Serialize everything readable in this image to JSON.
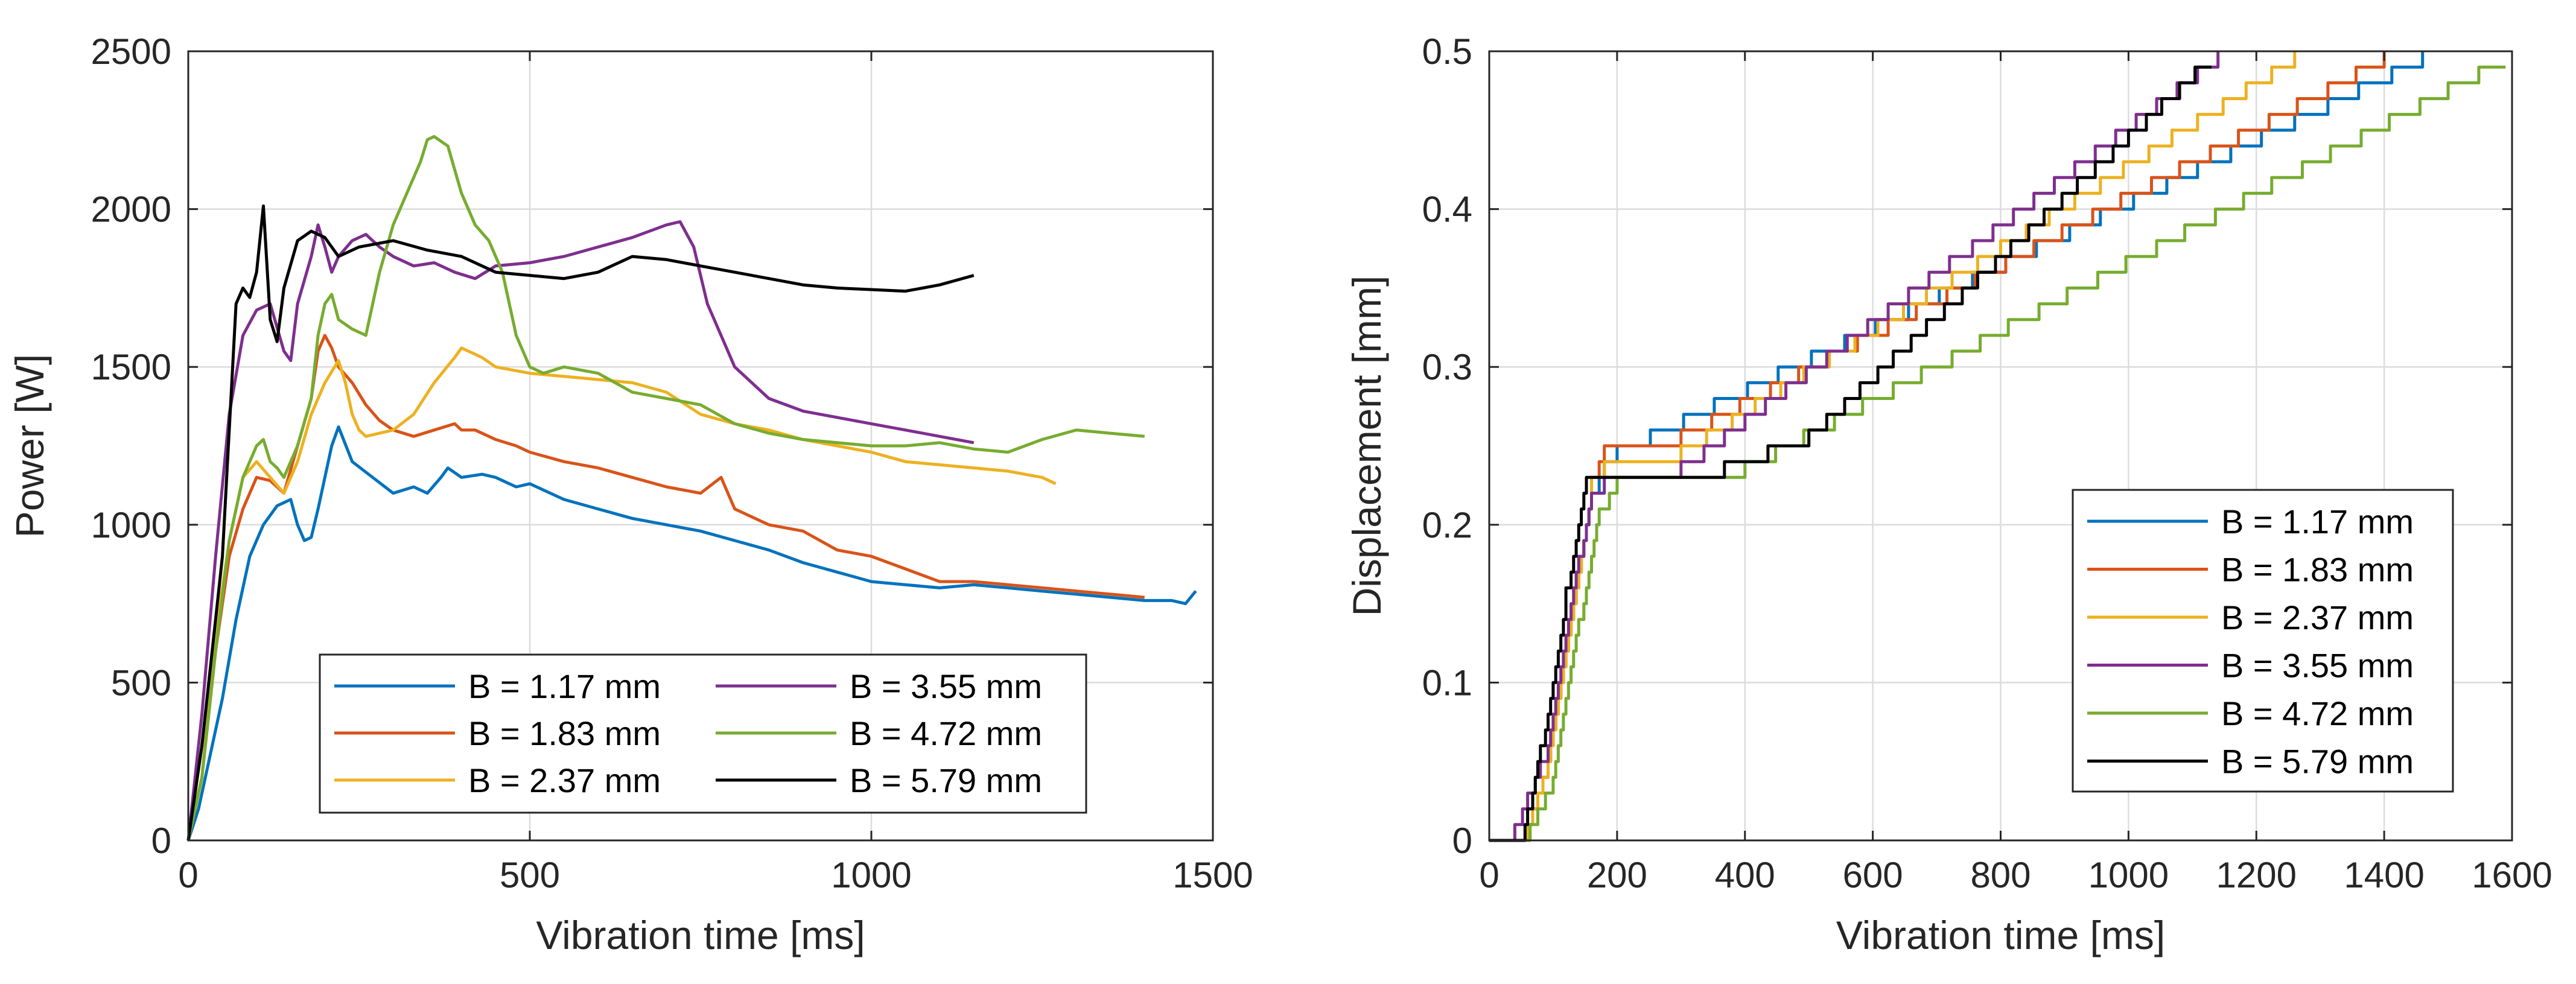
{
  "chart_data": [
    {
      "type": "line",
      "xlabel": "Vibration time [ms]",
      "ylabel": "Power [W]",
      "xlim": [
        0,
        1500
      ],
      "ylim": [
        0,
        2500
      ],
      "xticks": [
        0,
        500,
        1000,
        1500
      ],
      "yticks": [
        0,
        500,
        1000,
        1500,
        2000,
        2500
      ],
      "grid": true,
      "legend_position": "bottom-center",
      "legend_columns": 2,
      "series": [
        {
          "name": "B = 1.17 mm",
          "color": "#0072BD",
          "x": [
            0,
            15,
            30,
            50,
            70,
            90,
            110,
            130,
            150,
            160,
            170,
            180,
            190,
            200,
            210,
            220,
            240,
            270,
            300,
            330,
            350,
            370,
            380,
            400,
            430,
            450,
            480,
            500,
            550,
            600,
            650,
            700,
            750,
            800,
            850,
            900,
            950,
            1000,
            1050,
            1100,
            1150,
            1200,
            1250,
            1300,
            1350,
            1400,
            1440,
            1460,
            1475
          ],
          "y": [
            0,
            100,
            250,
            450,
            700,
            900,
            1000,
            1060,
            1080,
            1000,
            950,
            960,
            1050,
            1150,
            1250,
            1310,
            1200,
            1150,
            1100,
            1120,
            1100,
            1150,
            1180,
            1150,
            1160,
            1150,
            1120,
            1130,
            1080,
            1050,
            1020,
            1000,
            980,
            950,
            920,
            880,
            850,
            820,
            810,
            800,
            810,
            800,
            790,
            780,
            770,
            760,
            760,
            750,
            790
          ]
        },
        {
          "name": "B = 1.83 mm",
          "color": "#D95319",
          "x": [
            0,
            20,
            40,
            60,
            80,
            100,
            120,
            140,
            160,
            180,
            190,
            200,
            210,
            220,
            240,
            260,
            280,
            300,
            330,
            360,
            390,
            400,
            420,
            450,
            480,
            500,
            550,
            600,
            650,
            700,
            750,
            780,
            800,
            850,
            900,
            950,
            1000,
            1050,
            1100,
            1150,
            1200,
            1250,
            1300,
            1350,
            1400
          ],
          "y": [
            0,
            200,
            600,
            900,
            1050,
            1150,
            1140,
            1100,
            1250,
            1400,
            1550,
            1600,
            1560,
            1500,
            1450,
            1380,
            1330,
            1300,
            1280,
            1300,
            1320,
            1300,
            1300,
            1270,
            1250,
            1230,
            1200,
            1180,
            1150,
            1120,
            1100,
            1150,
            1050,
            1000,
            980,
            920,
            900,
            860,
            820,
            820,
            810,
            800,
            790,
            780,
            770
          ]
        },
        {
          "name": "B = 2.37 mm",
          "color": "#EDB120",
          "x": [
            0,
            20,
            40,
            60,
            80,
            100,
            120,
            140,
            160,
            180,
            200,
            220,
            230,
            240,
            250,
            260,
            280,
            300,
            330,
            360,
            390,
            400,
            410,
            430,
            450,
            500,
            550,
            600,
            650,
            700,
            750,
            800,
            850,
            900,
            950,
            1000,
            1050,
            1100,
            1150,
            1200,
            1250,
            1270
          ],
          "y": [
            0,
            200,
            650,
            950,
            1150,
            1200,
            1150,
            1100,
            1200,
            1350,
            1450,
            1520,
            1450,
            1350,
            1300,
            1280,
            1290,
            1300,
            1350,
            1450,
            1530,
            1560,
            1550,
            1530,
            1500,
            1480,
            1470,
            1460,
            1450,
            1420,
            1350,
            1320,
            1300,
            1270,
            1250,
            1230,
            1200,
            1190,
            1180,
            1170,
            1150,
            1130
          ]
        },
        {
          "name": "B = 3.55 mm",
          "color": "#7E2F8E",
          "x": [
            0,
            20,
            40,
            60,
            80,
            100,
            120,
            140,
            150,
            160,
            180,
            190,
            200,
            210,
            220,
            240,
            260,
            280,
            300,
            330,
            360,
            390,
            420,
            450,
            500,
            550,
            600,
            650,
            700,
            720,
            740,
            760,
            800,
            850,
            900,
            950,
            1000,
            1050,
            1100,
            1150
          ],
          "y": [
            0,
            400,
            900,
            1350,
            1600,
            1680,
            1700,
            1550,
            1520,
            1700,
            1850,
            1950,
            1880,
            1800,
            1850,
            1900,
            1920,
            1880,
            1850,
            1820,
            1830,
            1800,
            1780,
            1820,
            1830,
            1850,
            1880,
            1910,
            1950,
            1960,
            1880,
            1700,
            1500,
            1400,
            1360,
            1340,
            1320,
            1300,
            1280,
            1260
          ]
        },
        {
          "name": "B = 4.72 mm",
          "color": "#77AC30",
          "x": [
            0,
            20,
            40,
            60,
            80,
            100,
            110,
            120,
            130,
            140,
            160,
            180,
            190,
            200,
            210,
            220,
            240,
            260,
            280,
            300,
            320,
            340,
            350,
            360,
            380,
            400,
            420,
            440,
            460,
            480,
            500,
            520,
            550,
            600,
            650,
            700,
            750,
            800,
            850,
            900,
            950,
            1000,
            1050,
            1100,
            1150,
            1200,
            1250,
            1300,
            1350,
            1400
          ],
          "y": [
            0,
            200,
            600,
            950,
            1150,
            1250,
            1270,
            1200,
            1180,
            1150,
            1250,
            1400,
            1600,
            1700,
            1730,
            1650,
            1620,
            1600,
            1800,
            1950,
            2050,
            2150,
            2220,
            2230,
            2200,
            2050,
            1950,
            1900,
            1800,
            1600,
            1500,
            1480,
            1500,
            1480,
            1420,
            1400,
            1380,
            1320,
            1290,
            1270,
            1260,
            1250,
            1250,
            1260,
            1240,
            1230,
            1270,
            1300,
            1290,
            1280
          ]
        },
        {
          "name": "B = 5.79 mm",
          "color": "#000000",
          "x": [
            0,
            20,
            40,
            50,
            60,
            70,
            80,
            90,
            100,
            110,
            120,
            130,
            140,
            160,
            180,
            200,
            220,
            250,
            300,
            350,
            400,
            450,
            500,
            550,
            600,
            650,
            700,
            750,
            800,
            850,
            900,
            950,
            1000,
            1050,
            1100,
            1150
          ],
          "y": [
            0,
            300,
            700,
            900,
            1300,
            1700,
            1750,
            1720,
            1800,
            2010,
            1650,
            1580,
            1750,
            1900,
            1930,
            1910,
            1850,
            1880,
            1900,
            1870,
            1850,
            1800,
            1790,
            1780,
            1800,
            1850,
            1840,
            1820,
            1800,
            1780,
            1760,
            1750,
            1745,
            1740,
            1760,
            1790
          ]
        }
      ]
    },
    {
      "type": "line",
      "xlabel": "Vibration time [ms]",
      "ylabel": "Displacement [mm]",
      "xlim": [
        0,
        1600
      ],
      "ylim": [
        0,
        0.5
      ],
      "xticks": [
        0,
        200,
        400,
        600,
        800,
        1000,
        1200,
        1400,
        1600
      ],
      "yticks": [
        0,
        0.1,
        0.2,
        0.3,
        0.4,
        0.5
      ],
      "grid": true,
      "legend_position": "bottom-right",
      "legend_columns": 1,
      "series": [
        {
          "name": "B = 1.17 mm",
          "color": "#0072BD",
          "x": [
            0,
            50,
            90,
            130,
            160,
            180,
            200,
            1460
          ],
          "y": [
            0,
            0,
            0.05,
            0.15,
            0.22,
            0.24,
            0.25,
            0.5
          ]
        },
        {
          "name": "B = 1.83 mm",
          "color": "#D95319",
          "x": [
            0,
            50,
            90,
            130,
            160,
            180,
            300,
            1400
          ],
          "y": [
            0,
            0,
            0.05,
            0.15,
            0.23,
            0.25,
            0.26,
            0.5
          ]
        },
        {
          "name": "B = 2.37 mm",
          "color": "#EDB120",
          "x": [
            0,
            50,
            90,
            130,
            160,
            180,
            300,
            1260
          ],
          "y": [
            0,
            0,
            0.05,
            0.15,
            0.23,
            0.24,
            0.25,
            0.5
          ]
        },
        {
          "name": "B = 3.55 mm",
          "color": "#7E2F8E",
          "x": [
            0,
            40,
            90,
            130,
            160,
            180,
            300,
            1140
          ],
          "y": [
            0,
            0.01,
            0.06,
            0.16,
            0.22,
            0.23,
            0.24,
            0.5
          ]
        },
        {
          "name": "B = 4.72 mm",
          "color": "#77AC30",
          "x": [
            0,
            50,
            100,
            140,
            170,
            200,
            400,
            1590
          ],
          "y": [
            0,
            0,
            0.04,
            0.14,
            0.21,
            0.23,
            0.24,
            0.5
          ]
        },
        {
          "name": "B = 5.79 mm",
          "color": "#000000",
          "x": [
            0,
            50,
            90,
            120,
            150,
            300,
            500,
            1130
          ],
          "y": [
            0,
            0,
            0.08,
            0.16,
            0.23,
            0.23,
            0.26,
            0.5
          ]
        }
      ]
    }
  ]
}
